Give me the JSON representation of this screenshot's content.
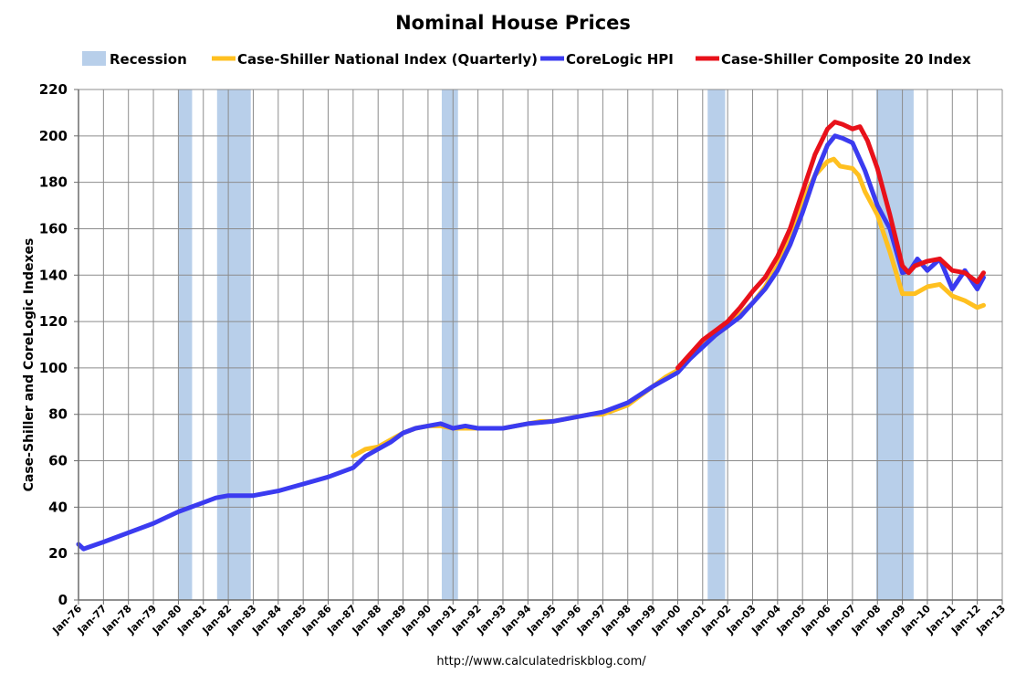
{
  "chart_data": {
    "type": "line",
    "title": "Nominal House Prices",
    "ylabel": "Case-Shiller and CoreLogic Indexes",
    "xlabel": "",
    "source": "http://www.calculatedriskblog.com/",
    "ylim": [
      0,
      220
    ],
    "yticks": [
      0,
      20,
      40,
      60,
      80,
      100,
      120,
      140,
      160,
      180,
      200,
      220
    ],
    "xlim": [
      1976,
      2013
    ],
    "xtick_labels": [
      "Jan-76",
      "Jan-77",
      "Jan-78",
      "Jan-79",
      "Jan-80",
      "Jan-81",
      "Jan-82",
      "Jan-83",
      "Jan-84",
      "Jan-85",
      "Jan-86",
      "Jan-87",
      "Jan-88",
      "Jan-89",
      "Jan-90",
      "Jan-91",
      "Jan-92",
      "Jan-93",
      "Jan-94",
      "Jan-95",
      "Jan-96",
      "Jan-97",
      "Jan-98",
      "Jan-99",
      "Jan-00",
      "Jan-01",
      "Jan-02",
      "Jan-03",
      "Jan-04",
      "Jan-05",
      "Jan-06",
      "Jan-07",
      "Jan-08",
      "Jan-09",
      "Jan-10",
      "Jan-11",
      "Jan-12",
      "Jan-13"
    ],
    "grid": true,
    "legend_position": "top",
    "recessions": [
      {
        "start": 1980.0,
        "end": 1980.55
      },
      {
        "start": 1981.55,
        "end": 1982.9
      },
      {
        "start": 1990.55,
        "end": 1991.2
      },
      {
        "start": 2001.2,
        "end": 2001.9
      },
      {
        "start": 2007.95,
        "end": 2009.45
      }
    ],
    "recession_legend": "Recession",
    "recession_color": "#b8cfea",
    "series": [
      {
        "name": "Case-Shiller National Index (Quarterly)",
        "color": "#ffc020",
        "x": [
          1987.0,
          1987.5,
          1988.0,
          1988.5,
          1989.0,
          1989.5,
          1990.0,
          1990.5,
          1991.0,
          1991.5,
          1992.0,
          1992.5,
          1993.0,
          1993.5,
          1994.0,
          1994.5,
          1995.0,
          1995.5,
          1996.0,
          1996.5,
          1997.0,
          1997.5,
          1998.0,
          1998.5,
          1999.0,
          1999.5,
          2000.0,
          2000.5,
          2001.0,
          2001.5,
          2002.0,
          2002.5,
          2003.0,
          2003.5,
          2004.0,
          2004.5,
          2005.0,
          2005.5,
          2006.0,
          2006.25,
          2006.5,
          2007.0,
          2007.25,
          2007.5,
          2008.0,
          2008.5,
          2009.0,
          2009.5,
          2010.0,
          2010.5,
          2011.0,
          2011.5,
          2012.0,
          2012.25
        ],
        "y": [
          62,
          65,
          66,
          69,
          72,
          74,
          75,
          75,
          74,
          74,
          74,
          74,
          74,
          75,
          76,
          77,
          77,
          78,
          79,
          80,
          80,
          82,
          84,
          88,
          92,
          96,
          99,
          105,
          110,
          114,
          118,
          123,
          128,
          135,
          144,
          157,
          172,
          183,
          189,
          190,
          187,
          186,
          183,
          176,
          166,
          150,
          132,
          132,
          135,
          136,
          131,
          129,
          126,
          127
        ]
      },
      {
        "name": "CoreLogic HPI",
        "color": "#3b3bf0",
        "x": [
          1976.0,
          1976.2,
          1977.0,
          1978.0,
          1979.0,
          1980.0,
          1981.0,
          1981.5,
          1982.0,
          1983.0,
          1984.0,
          1985.0,
          1986.0,
          1987.0,
          1987.5,
          1988.0,
          1988.5,
          1989.0,
          1989.5,
          1990.0,
          1990.5,
          1991.0,
          1991.5,
          1992.0,
          1993.0,
          1994.0,
          1995.0,
          1996.0,
          1997.0,
          1998.0,
          1999.0,
          2000.0,
          2000.5,
          2001.0,
          2001.5,
          2002.0,
          2002.5,
          2003.0,
          2003.5,
          2004.0,
          2004.5,
          2005.0,
          2005.5,
          2006.0,
          2006.3,
          2006.6,
          2007.0,
          2007.5,
          2008.0,
          2008.5,
          2009.0,
          2009.3,
          2009.6,
          2010.0,
          2010.5,
          2011.0,
          2011.5,
          2012.0,
          2012.25
        ],
        "y": [
          24,
          22,
          25,
          29,
          33,
          38,
          42,
          44,
          45,
          45,
          47,
          50,
          53,
          57,
          62,
          65,
          68,
          72,
          74,
          75,
          76,
          74,
          75,
          74,
          74,
          76,
          77,
          79,
          81,
          85,
          92,
          98,
          104,
          109,
          114,
          118,
          122,
          128,
          134,
          142,
          153,
          167,
          183,
          196,
          200,
          199,
          197,
          185,
          170,
          160,
          141,
          142,
          147,
          142,
          147,
          134,
          142,
          134,
          139
        ]
      },
      {
        "name": "Case-Shiller Composite 20 Index",
        "color": "#e8111a",
        "x": [
          2000.0,
          2000.5,
          2001.0,
          2001.5,
          2002.0,
          2002.5,
          2003.0,
          2003.5,
          2004.0,
          2004.5,
          2005.0,
          2005.5,
          2006.0,
          2006.3,
          2006.6,
          2007.0,
          2007.3,
          2007.6,
          2008.0,
          2008.5,
          2009.0,
          2009.25,
          2009.5,
          2010.0,
          2010.5,
          2011.0,
          2011.5,
          2012.0,
          2012.25
        ],
        "y": [
          100,
          106,
          112,
          116,
          120,
          126,
          133,
          139,
          148,
          160,
          176,
          192,
          203,
          206,
          205,
          203,
          204,
          198,
          186,
          166,
          144,
          141,
          144,
          146,
          147,
          142,
          141,
          137,
          141
        ]
      }
    ]
  }
}
